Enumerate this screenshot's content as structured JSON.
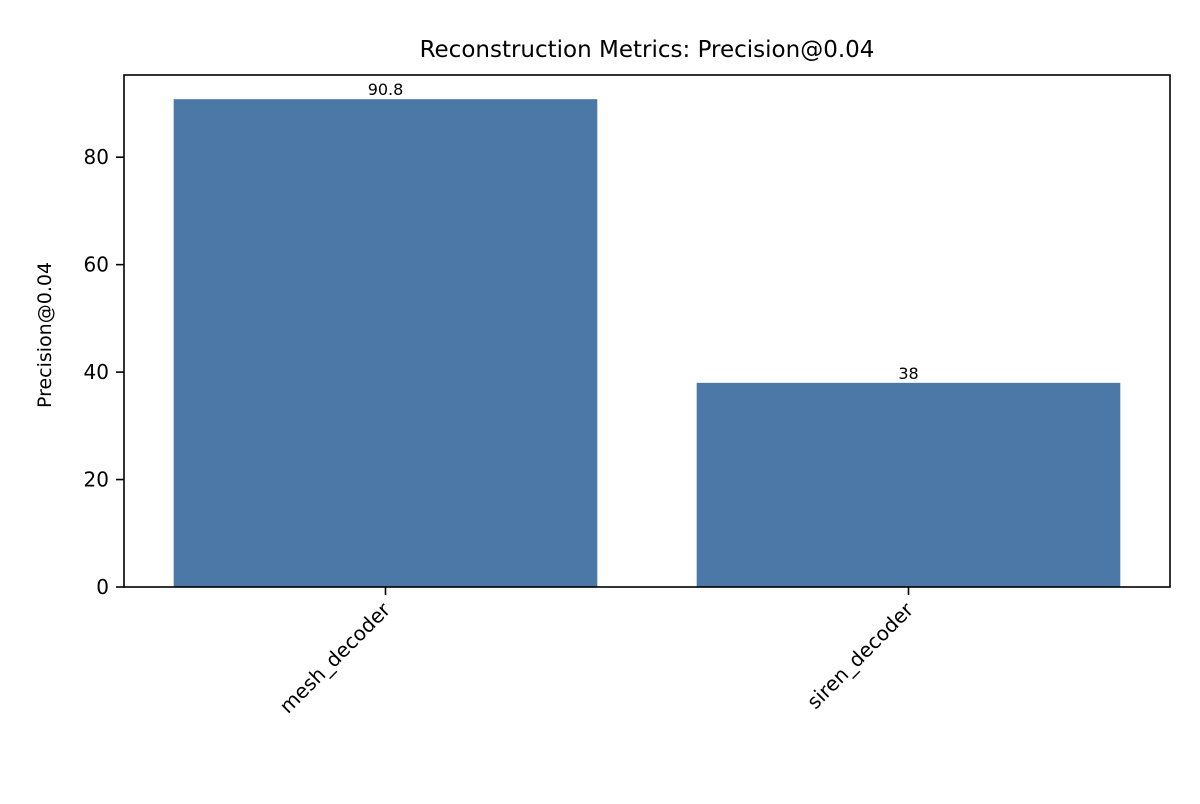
{
  "chart_data": {
    "type": "bar",
    "title": "Reconstruction Metrics: Precision@0.04",
    "xlabel": "",
    "ylabel": "Precision@0.04",
    "categories": [
      "mesh_decoder",
      "siren_decoder"
    ],
    "values": [
      90.8,
      38
    ],
    "value_labels": [
      "90.8",
      "38"
    ],
    "ylim": [
      0,
      95.3
    ],
    "yticks": [
      0,
      20,
      40,
      60,
      80
    ],
    "grid": false,
    "legend": "none",
    "bar_color": "#4c78a8"
  }
}
